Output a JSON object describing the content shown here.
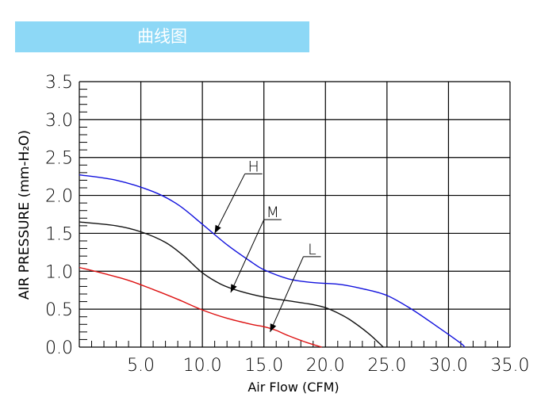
{
  "header": {
    "title": "曲线图"
  },
  "colors": {
    "banner": "#8dd8f6",
    "H": "#1111dd",
    "M": "#111111",
    "L": "#dd1111"
  },
  "chart_data": {
    "type": "line",
    "title": "",
    "xlabel": "Air Flow (CFM)",
    "ylabel": "AIR PRESSURE (mm-H₂O)",
    "xlim": [
      0,
      35
    ],
    "ylim": [
      0,
      3.5
    ],
    "x_ticks": [
      "5.0",
      "10.0",
      "15.0",
      "20.0",
      "25.0",
      "30.0",
      "35.0"
    ],
    "y_ticks": [
      "0.0",
      "0.5",
      "1.0",
      "1.5",
      "2.0",
      "2.5",
      "3.0",
      "3.5"
    ],
    "grid": true,
    "series": [
      {
        "name": "H",
        "color": "#1111dd",
        "points": [
          [
            0,
            2.27
          ],
          [
            3,
            2.2
          ],
          [
            6,
            2.05
          ],
          [
            8,
            1.88
          ],
          [
            10,
            1.62
          ],
          [
            12,
            1.35
          ],
          [
            14,
            1.12
          ],
          [
            15,
            1.02
          ],
          [
            17,
            0.9
          ],
          [
            19,
            0.85
          ],
          [
            21,
            0.83
          ],
          [
            23,
            0.77
          ],
          [
            25,
            0.68
          ],
          [
            27,
            0.5
          ],
          [
            29,
            0.28
          ],
          [
            31,
            0.05
          ],
          [
            31.3,
            0
          ]
        ]
      },
      {
        "name": "M",
        "color": "#111111",
        "points": [
          [
            0,
            1.65
          ],
          [
            3,
            1.6
          ],
          [
            5,
            1.52
          ],
          [
            7,
            1.38
          ],
          [
            8.5,
            1.2
          ],
          [
            10,
            0.98
          ],
          [
            11.5,
            0.83
          ],
          [
            13,
            0.74
          ],
          [
            15,
            0.66
          ],
          [
            17,
            0.61
          ],
          [
            19,
            0.56
          ],
          [
            20,
            0.52
          ],
          [
            21,
            0.45
          ],
          [
            22,
            0.36
          ],
          [
            23.5,
            0.18
          ],
          [
            24.7,
            0
          ]
        ]
      },
      {
        "name": "L",
        "color": "#dd1111",
        "points": [
          [
            0,
            1.05
          ],
          [
            2,
            0.97
          ],
          [
            4,
            0.88
          ],
          [
            6,
            0.76
          ],
          [
            8,
            0.63
          ],
          [
            10,
            0.49
          ],
          [
            12,
            0.38
          ],
          [
            14,
            0.3
          ],
          [
            15,
            0.27
          ],
          [
            16,
            0.22
          ],
          [
            17,
            0.15
          ],
          [
            18.5,
            0.06
          ],
          [
            19.7,
            0
          ]
        ]
      }
    ],
    "annotations": [
      {
        "label": "H",
        "series": "H",
        "at": [
          11,
          1.5
        ]
      },
      {
        "label": "M",
        "series": "M",
        "at": [
          12.3,
          0.72
        ]
      },
      {
        "label": "L",
        "series": "L",
        "at": [
          15.5,
          0.2
        ]
      }
    ]
  }
}
